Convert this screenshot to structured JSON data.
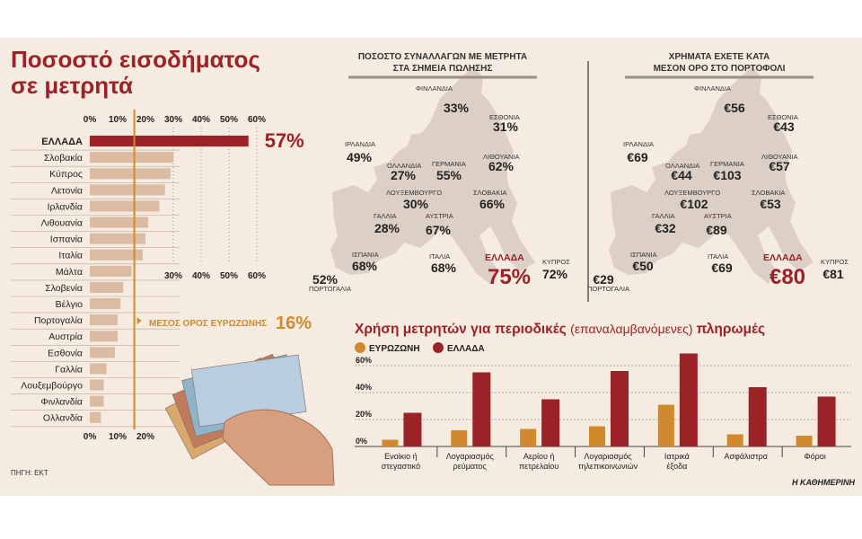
{
  "title_lines": [
    "Ποσοστό εισοδήματος",
    "σε μετρητά"
  ],
  "source": "ΠΗΓΗ: ΕΚΤ",
  "publisher": "Η ΚΑΘΗΜΕΡΙΝΗ",
  "colors": {
    "eurozone": "#d08a2c",
    "greece": "#9b2226",
    "bar": "#dbbca3",
    "panel": "#f5ebe0",
    "map": "#dcd0c6"
  },
  "chart_data": [
    {
      "type": "bar",
      "orientation": "horizontal",
      "title": "Ποσοστό εισοδήματος σε μετρητά",
      "categories": [
        "ΕΛΛΑΔΑ",
        "Σλοβακία",
        "Κύπρος",
        "Λετονία",
        "Ιρλανδία",
        "Λιθουανία",
        "Ισπανία",
        "Ιταλία",
        "Μάλτα",
        "Σλοβενία",
        "Βέλγιο",
        "Πορτογαλία",
        "Αυστρία",
        "Εσθονία",
        "Γαλλία",
        "Λουξεμβούργο",
        "Φινλανδία",
        "Ολλανδία"
      ],
      "values": [
        57,
        30,
        29,
        27,
        25,
        21,
        20,
        19,
        15,
        12,
        11,
        10,
        10,
        9,
        6,
        5,
        5,
        4
      ],
      "xlim": [
        0,
        60
      ],
      "tick_labels": [
        "0%",
        "10%",
        "20%",
        "30%",
        "40%",
        "50%",
        "60%"
      ],
      "value_label": "57%",
      "reference_line": {
        "value": 16,
        "label": "ΜΕΣΟΣ ΟΡΟΣ ΕΥΡΩΖΩΝΗΣ",
        "value_label": "16%"
      }
    },
    {
      "type": "bar",
      "title": "Χρήση μετρητών για περιοδικές (επαναλαμβανόμενες) πληρωμές",
      "title_parts": [
        "Χρήση μετρητών για περιοδικές",
        "(επαναλαμβανόμενες)",
        "πληρωμές"
      ],
      "categories": [
        [
          "Ενοίκιο ή",
          "στεγαστικό"
        ],
        [
          "Λογαριασμός",
          "ρεύματος"
        ],
        [
          "Αερίου ή",
          "πετρελαίου"
        ],
        [
          "Λογαριασμός",
          "τηλεπικοινωνιών"
        ],
        [
          "Ιατρικά",
          "έξοδα"
        ],
        [
          "Ασφάλιστρα"
        ],
        [
          "Φόροι"
        ]
      ],
      "series": [
        {
          "name": "ΕΥΡΩΖΩΝΗ",
          "values": [
            5,
            12,
            13,
            15,
            31,
            9,
            8
          ]
        },
        {
          "name": "ΕΛΛΑΔΑ",
          "values": [
            25,
            55,
            35,
            56,
            69,
            44,
            37
          ]
        }
      ],
      "ylim": [
        0,
        70
      ],
      "tick_labels": [
        "0%",
        "20%",
        "40%",
        "60%"
      ],
      "legend_position": "top-left",
      "grid": true
    }
  ],
  "maps": [
    {
      "title_lines": [
        "ΠΟΣΟΣΤΟ ΣΥΝΑΛΛΑΓΩΝ ΜΕ ΜΕΤΡΗΤΑ",
        "ΣΤΑ ΣΗΜΕΙΑ ΠΩΛΗΣΗΣ"
      ],
      "labels": [
        {
          "name": "ΦΙΝΛΑΝΔΙΑ",
          "value": "33%"
        },
        {
          "name": "ΕΣΘΟΝΙΑ",
          "value": "31%"
        },
        {
          "name": "ΙΡΛΑΝΔΙΑ",
          "value": "49%"
        },
        {
          "name": "ΟΛΛΑΝΔΙΑ",
          "value": "27%"
        },
        {
          "name": "ΓΕΡΜΑΝΙΑ",
          "value": "55%"
        },
        {
          "name": "ΛΙΘΟΥΑΝΙΑ",
          "value": "62%"
        },
        {
          "name": "ΛΟΥΞΕΜΒΟΥΡΓΟ",
          "value": "30%"
        },
        {
          "name": "ΣΛΟΒΑΚΙΑ",
          "value": "66%"
        },
        {
          "name": "ΓΑΛΛΙΑ",
          "value": "28%"
        },
        {
          "name": "ΑΥΣΤΡΙΑ",
          "value": "67%"
        },
        {
          "name": "ΙΣΠΑΝΙΑ",
          "value": "68%"
        },
        {
          "name": "ΙΤΑΛΙΑ",
          "value": "68%"
        },
        {
          "name": "ΕΛΛΑΔΑ",
          "value": "75%"
        },
        {
          "name": "ΚΥΠΡΟΣ",
          "value": "72%"
        },
        {
          "name": "ΠΟΡΤΟΓΑΛΙΑ",
          "value": "52%"
        }
      ]
    },
    {
      "title_lines": [
        "ΧΡΗΜΑΤΑ ΕΧΕΤΕ ΚΑΤΑ",
        "ΜΕΣΟΝ ΟΡΟ ΣΤΟ ΠΟΡΤΟΦΟΛΙ"
      ],
      "labels": [
        {
          "name": "ΦΙΝΛΑΝΔΙΑ",
          "value": "€56"
        },
        {
          "name": "ΕΣΘΟΝΙΑ",
          "value": "€43"
        },
        {
          "name": "ΙΡΛΑΝΔΙΑ",
          "value": "€69"
        },
        {
          "name": "ΟΛΛΑΝΔΙΑ",
          "value": "€44"
        },
        {
          "name": "ΓΕΡΜΑΝΙΑ",
          "value": "€103"
        },
        {
          "name": "ΛΙΘΟΥΑΝΙΑ",
          "value": "€57"
        },
        {
          "name": "ΛΟΥΞΕΜΒΟΥΡΓΟ",
          "value": "€102"
        },
        {
          "name": "ΣΛΟΒΑΚΙΑ",
          "value": "€53"
        },
        {
          "name": "ΓΑΛΛΙΑ",
          "value": "€32"
        },
        {
          "name": "ΑΥΣΤΡΙΑ",
          "value": "€89"
        },
        {
          "name": "ΙΣΠΑΝΙΑ",
          "value": "€50"
        },
        {
          "name": "ΙΤΑΛΙΑ",
          "value": "€69"
        },
        {
          "name": "ΕΛΛΑΔΑ",
          "value": "€80"
        },
        {
          "name": "ΚΥΠΡΟΣ",
          "value": "€81"
        },
        {
          "name": "ΠΟΡΤΟΓΑΛΙΑ",
          "value": "€29"
        }
      ]
    }
  ]
}
